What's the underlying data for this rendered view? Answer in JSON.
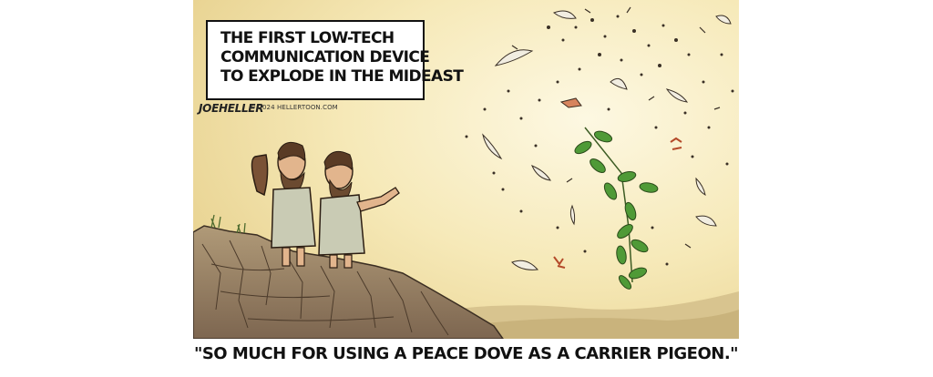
{
  "cartoon": {
    "caption_lines": [
      "THE FIRST LOW-TECH",
      "COMMUNICATION DEVICE",
      "TO EXPLODE IN THE MIDEAST"
    ],
    "signature": "JOEHELLER",
    "copyright": "© 2024 HELLERTOON.COM",
    "quote": "\"SO MUCH FOR USING A PEACE DOVE AS A CARRIER PIGEON.\""
  },
  "colors": {
    "sky_light": "#fbf3d2",
    "sky_warm": "#efdc9e",
    "cliff": "#9c8466",
    "cliff_dark": "#5e4a37",
    "leaf_green": "#4f9a37",
    "tunic": "#c9cbb4"
  }
}
